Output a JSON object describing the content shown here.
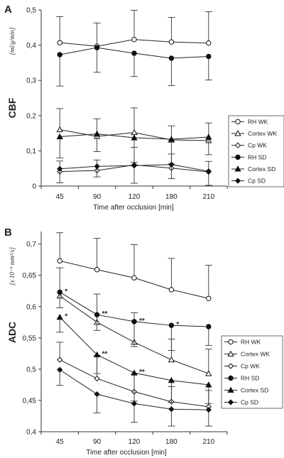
{
  "chart_data": [
    {
      "panel": "A",
      "type": "line",
      "ylabel": "CBF",
      "yunit": "[ml/g/min]",
      "xlabel": "Time after occlusion [min]",
      "categories": [
        "45",
        "90",
        "120",
        "180",
        "210"
      ],
      "ylim": [
        0,
        0.5
      ],
      "ytick_labels": [
        "0",
        "0,1",
        "0,2",
        "0,3",
        "0,4",
        "0,5"
      ],
      "grid": false,
      "legend_position": "right",
      "series": [
        {
          "name": "RH WK",
          "marker": "circle-open",
          "values": [
            0.407,
            0.397,
            0.416,
            0.409,
            0.406
          ],
          "err": [
            0.074,
            0.066,
            0.083,
            0.07,
            0.089
          ]
        },
        {
          "name": "Cortex WK",
          "marker": "triangle-open",
          "values": [
            0.16,
            0.141,
            0.152,
            0.131,
            0.129
          ],
          "err": [
            0.06,
            0.05,
            0.07,
            0.04,
            0.05
          ]
        },
        {
          "name": "Cp WK",
          "marker": "diamond-open",
          "values": [
            0.041,
            0.044,
            0.06,
            0.051,
            0.04
          ],
          "err": [
            0.03,
            0.03,
            0.05,
            0.04,
            0.03
          ]
        },
        {
          "name": "RH SD",
          "marker": "circle-filled",
          "values": [
            0.373,
            0.393,
            0.377,
            0.363,
            0.368
          ],
          "err": [
            0.089,
            0.07,
            0.066,
            0.078,
            0.067
          ]
        },
        {
          "name": "Cortex SD",
          "marker": "triangle-filled",
          "values": [
            0.14,
            0.148,
            0.137,
            0.133,
            0.139
          ],
          "err": [
            0.06,
            0.05,
            0.07,
            0.07,
            0.05
          ]
        },
        {
          "name": "Cp SD",
          "marker": "diamond-filled",
          "values": [
            0.049,
            0.056,
            0.058,
            0.061,
            0.042
          ],
          "err": [
            0.04,
            0.03,
            0.05,
            0.04,
            0.04
          ]
        }
      ]
    },
    {
      "panel": "B",
      "type": "line",
      "ylabel": "ADC",
      "yunit": "[x 10⁻³ mm²/s]",
      "xlabel": "Time after occlusion [min]",
      "categories": [
        "45",
        "90",
        "120",
        "180",
        "210"
      ],
      "ylim": [
        0.4,
        0.72
      ],
      "ytick_labels": [
        "0,4",
        "0,45",
        "0,5",
        "0,55",
        "0,6",
        "0,65",
        "0,7"
      ],
      "grid": false,
      "legend_position": "bottom-right",
      "series": [
        {
          "name": "RH WK",
          "marker": "circle-open",
          "values": [
            0.673,
            0.659,
            0.646,
            0.627,
            0.613
          ],
          "err": [
            0.045,
            0.05,
            0.053,
            0.05,
            0.053
          ]
        },
        {
          "name": "Cortex WK",
          "marker": "triangle-open",
          "values": [
            0.617,
            0.575,
            0.543,
            0.515,
            0.493
          ],
          "err": [
            0.045,
            0.045,
            0.047,
            0.033,
            0.039
          ]
        },
        {
          "name": "Cp WK",
          "marker": "diamond-open",
          "values": [
            0.515,
            0.485,
            0.464,
            0.448,
            0.44
          ],
          "err": [
            0.028,
            0.037,
            0.028,
            0.024,
            0.026
          ]
        },
        {
          "name": "RH SD",
          "marker": "circle-filled",
          "values": [
            0.623,
            0.587,
            0.576,
            0.57,
            0.568
          ],
          "err": [
            0.025,
            0.025,
            0.04,
            0.04,
            0.03
          ]
        },
        {
          "name": "Cortex SD",
          "marker": "triangle-filled",
          "values": [
            0.583,
            0.523,
            0.494,
            0.482,
            0.475
          ],
          "err": [
            0.024,
            0.03,
            0.045,
            0.035,
            0.03
          ]
        },
        {
          "name": "Cp SD",
          "marker": "diamond-filled",
          "values": [
            0.499,
            0.46,
            0.445,
            0.436,
            0.435
          ],
          "err": [
            0.025,
            0.03,
            0.03,
            0.027,
            0.026
          ]
        }
      ],
      "annotations": [
        {
          "text": "*",
          "series": "RH SD",
          "category": "45"
        },
        {
          "text": "**",
          "series": "RH SD",
          "category": "90"
        },
        {
          "text": "**",
          "series": "RH SD",
          "category": "120"
        },
        {
          "text": "*",
          "series": "RH SD",
          "category": "180"
        },
        {
          "text": "*",
          "series": "Cortex SD",
          "category": "45"
        },
        {
          "text": "**",
          "series": "Cortex SD",
          "category": "90"
        },
        {
          "text": "**",
          "series": "Cortex SD",
          "category": "120"
        }
      ]
    }
  ]
}
